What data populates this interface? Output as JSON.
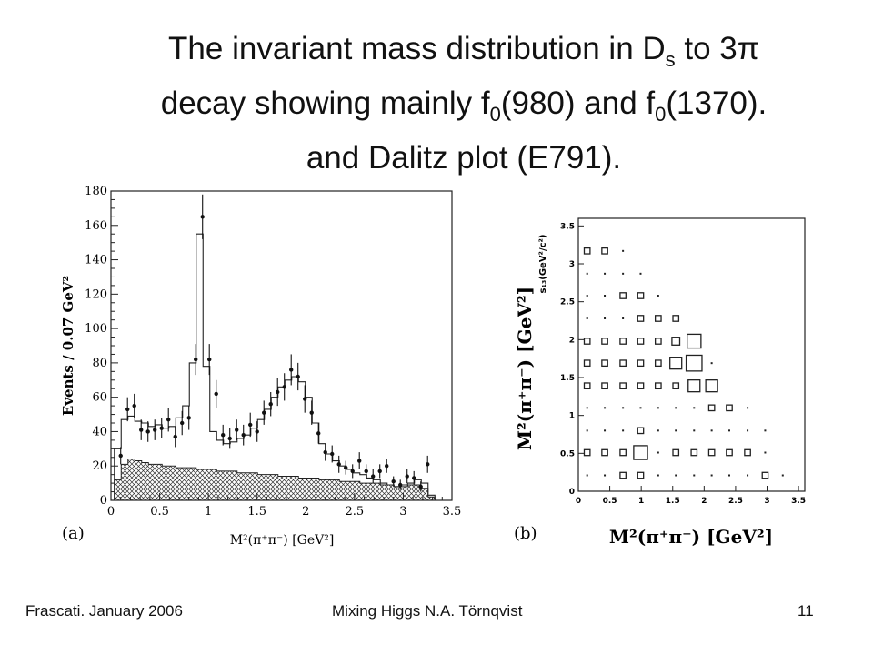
{
  "slide": {
    "title_line1_a": "The invariant mass distribution in D",
    "title_line1_sub": "s",
    "title_line1_b": " to 3π",
    "title_line2_a": "decay showing mainly  f",
    "title_line2_sub1": "0",
    "title_line2_b": "(980) and  f",
    "title_line2_sub2": "0",
    "title_line2_c": "(1370).",
    "title_line3": "and Dalitz plot (E791).",
    "footer_left": "Frascati.  January 2006",
    "footer_center": "Mixing Higgs       N.A. Törnqvist",
    "footer_right": "11"
  },
  "chart_data": [
    {
      "type": "histogram",
      "panel_label": "(a)",
      "xlabel": "M²(π⁺π⁻) [GeV²]",
      "ylabel": "Events / 0.07 GeV²",
      "xlim": [
        0,
        3.5
      ],
      "ylim": [
        0,
        180
      ],
      "x_ticks": [
        "0",
        "0.5",
        "1",
        "1.5",
        "2",
        "2.5",
        "3",
        "3.5"
      ],
      "y_ticks": [
        "0",
        "20",
        "40",
        "60",
        "80",
        "100",
        "120",
        "140",
        "160",
        "180"
      ],
      "series": [
        {
          "kind": "fit",
          "x": [
            0.07,
            0.14,
            0.21,
            0.28,
            0.35,
            0.42,
            0.49,
            0.56,
            0.63,
            0.7,
            0.77,
            0.84,
            0.91,
            0.98,
            1.05,
            1.12,
            1.19,
            1.26,
            1.33,
            1.4,
            1.47,
            1.54,
            1.61,
            1.68,
            1.75,
            1.82,
            1.89,
            1.96,
            2.03,
            2.1,
            2.17,
            2.24,
            2.31,
            2.38,
            2.45,
            2.52,
            2.59,
            2.66,
            2.73,
            2.8,
            2.87,
            2.94,
            3.01,
            3.08,
            3.15,
            3.22,
            3.29
          ],
          "values": [
            30,
            47,
            49,
            46,
            45,
            43,
            44,
            42,
            43,
            48,
            55,
            80,
            155,
            78,
            40,
            35,
            33,
            34,
            36,
            38,
            42,
            47,
            53,
            60,
            66,
            70,
            72,
            69,
            60,
            45,
            33,
            27,
            23,
            20,
            18,
            16,
            15,
            13,
            12,
            10,
            9,
            8,
            9,
            10,
            12,
            10,
            3
          ]
        },
        {
          "kind": "background",
          "x": [
            0.07,
            0.14,
            0.21,
            0.28,
            0.35,
            0.42,
            0.49,
            0.56,
            0.63,
            0.7,
            0.77,
            0.84,
            0.91,
            0.98,
            1.05,
            1.12,
            1.19,
            1.26,
            1.33,
            1.4,
            1.47,
            1.54,
            1.61,
            1.68,
            1.75,
            1.82,
            1.89,
            1.96,
            2.03,
            2.1,
            2.17,
            2.24,
            2.31,
            2.38,
            2.45,
            2.52,
            2.59,
            2.66,
            2.73,
            2.8,
            2.87,
            2.94,
            3.01,
            3.08,
            3.15,
            3.22,
            3.29
          ],
          "values": [
            12,
            21,
            24,
            23,
            22,
            21,
            21,
            20,
            20,
            19,
            19,
            19,
            18,
            18,
            18,
            17,
            17,
            17,
            16,
            16,
            16,
            15,
            15,
            15,
            14,
            14,
            14,
            13,
            13,
            13,
            12,
            12,
            12,
            11,
            11,
            11,
            10,
            10,
            10,
            9,
            9,
            8,
            8,
            9,
            9,
            7,
            2
          ]
        },
        {
          "kind": "data",
          "points": [
            {
              "x": 0.1,
              "y": 26,
              "err": 5
            },
            {
              "x": 0.17,
              "y": 53,
              "err": 7
            },
            {
              "x": 0.24,
              "y": 55,
              "err": 7
            },
            {
              "x": 0.31,
              "y": 41,
              "err": 6
            },
            {
              "x": 0.38,
              "y": 40,
              "err": 6
            },
            {
              "x": 0.45,
              "y": 41,
              "err": 6
            },
            {
              "x": 0.52,
              "y": 42,
              "err": 6
            },
            {
              "x": 0.59,
              "y": 47,
              "err": 7
            },
            {
              "x": 0.66,
              "y": 37,
              "err": 6
            },
            {
              "x": 0.73,
              "y": 45,
              "err": 7
            },
            {
              "x": 0.8,
              "y": 48,
              "err": 7
            },
            {
              "x": 0.87,
              "y": 82,
              "err": 9
            },
            {
              "x": 0.94,
              "y": 165,
              "err": 13
            },
            {
              "x": 1.01,
              "y": 82,
              "err": 9
            },
            {
              "x": 1.08,
              "y": 62,
              "err": 8
            },
            {
              "x": 1.15,
              "y": 38,
              "err": 6
            },
            {
              "x": 1.22,
              "y": 36,
              "err": 6
            },
            {
              "x": 1.29,
              "y": 41,
              "err": 6
            },
            {
              "x": 1.36,
              "y": 38,
              "err": 6
            },
            {
              "x": 1.43,
              "y": 44,
              "err": 7
            },
            {
              "x": 1.5,
              "y": 40,
              "err": 6
            },
            {
              "x": 1.57,
              "y": 51,
              "err": 7
            },
            {
              "x": 1.64,
              "y": 56,
              "err": 7
            },
            {
              "x": 1.71,
              "y": 63,
              "err": 8
            },
            {
              "x": 1.78,
              "y": 66,
              "err": 8
            },
            {
              "x": 1.85,
              "y": 76,
              "err": 9
            },
            {
              "x": 1.92,
              "y": 72,
              "err": 8
            },
            {
              "x": 1.99,
              "y": 59,
              "err": 8
            },
            {
              "x": 2.06,
              "y": 51,
              "err": 7
            },
            {
              "x": 2.13,
              "y": 39,
              "err": 6
            },
            {
              "x": 2.2,
              "y": 28,
              "err": 5
            },
            {
              "x": 2.27,
              "y": 27,
              "err": 5
            },
            {
              "x": 2.34,
              "y": 21,
              "err": 5
            },
            {
              "x": 2.41,
              "y": 19,
              "err": 4
            },
            {
              "x": 2.48,
              "y": 17,
              "err": 4
            },
            {
              "x": 2.55,
              "y": 23,
              "err": 5
            },
            {
              "x": 2.62,
              "y": 17,
              "err": 4
            },
            {
              "x": 2.69,
              "y": 14,
              "err": 4
            },
            {
              "x": 2.76,
              "y": 17,
              "err": 4
            },
            {
              "x": 2.83,
              "y": 20,
              "err": 4
            },
            {
              "x": 2.9,
              "y": 11,
              "err": 3
            },
            {
              "x": 2.97,
              "y": 9,
              "err": 3
            },
            {
              "x": 3.04,
              "y": 14,
              "err": 4
            },
            {
              "x": 3.11,
              "y": 13,
              "err": 4
            },
            {
              "x": 3.18,
              "y": 8,
              "err": 3
            },
            {
              "x": 3.25,
              "y": 21,
              "err": 5
            }
          ]
        }
      ]
    },
    {
      "type": "scatter",
      "panel_label": "(b)",
      "xlabel": "M²(π⁺π⁻) [GeV²]",
      "ylabel": "M²(π⁺π⁻) [GeV²]",
      "inner_ylabel": "s₁₃(GeV²/c²)",
      "xlim": [
        0,
        3.6
      ],
      "ylim": [
        0,
        3.6
      ],
      "x_ticks": [
        "0",
        "0.5",
        "1",
        "1.5",
        "2",
        "2.5",
        "3",
        "3.5"
      ],
      "y_ticks": [
        "0",
        "0.5",
        "1",
        "1.5",
        "2",
        "2.5",
        "3",
        "3.5"
      ],
      "cells": [
        {
          "x": 0.14,
          "y": 3.17,
          "w": 2
        },
        {
          "x": 0.42,
          "y": 3.17,
          "w": 2
        },
        {
          "x": 0.71,
          "y": 3.17,
          "w": 1
        },
        {
          "x": 0.14,
          "y": 2.87,
          "w": 1
        },
        {
          "x": 0.42,
          "y": 2.87,
          "w": 1
        },
        {
          "x": 0.71,
          "y": 2.87,
          "w": 1
        },
        {
          "x": 0.99,
          "y": 2.87,
          "w": 1
        },
        {
          "x": 0.14,
          "y": 2.58,
          "w": 1
        },
        {
          "x": 0.42,
          "y": 2.58,
          "w": 1
        },
        {
          "x": 0.71,
          "y": 2.58,
          "w": 2
        },
        {
          "x": 0.99,
          "y": 2.58,
          "w": 2
        },
        {
          "x": 1.27,
          "y": 2.58,
          "w": 1
        },
        {
          "x": 0.14,
          "y": 2.28,
          "w": 1
        },
        {
          "x": 0.42,
          "y": 2.28,
          "w": 1
        },
        {
          "x": 0.71,
          "y": 2.28,
          "w": 1
        },
        {
          "x": 0.99,
          "y": 2.28,
          "w": 2
        },
        {
          "x": 1.27,
          "y": 2.28,
          "w": 2
        },
        {
          "x": 1.55,
          "y": 2.28,
          "w": 2
        },
        {
          "x": 0.14,
          "y": 1.98,
          "w": 2
        },
        {
          "x": 0.42,
          "y": 1.98,
          "w": 2
        },
        {
          "x": 0.71,
          "y": 1.98,
          "w": 2
        },
        {
          "x": 0.99,
          "y": 1.98,
          "w": 2
        },
        {
          "x": 1.27,
          "y": 1.98,
          "w": 2
        },
        {
          "x": 1.55,
          "y": 1.98,
          "w": 3
        },
        {
          "x": 1.84,
          "y": 1.98,
          "w": 6
        },
        {
          "x": 0.14,
          "y": 1.69,
          "w": 2
        },
        {
          "x": 0.42,
          "y": 1.69,
          "w": 2
        },
        {
          "x": 0.71,
          "y": 1.69,
          "w": 2
        },
        {
          "x": 0.99,
          "y": 1.69,
          "w": 2
        },
        {
          "x": 1.27,
          "y": 1.69,
          "w": 2
        },
        {
          "x": 1.55,
          "y": 1.69,
          "w": 5
        },
        {
          "x": 1.84,
          "y": 1.69,
          "w": 7
        },
        {
          "x": 2.12,
          "y": 1.69,
          "w": 1
        },
        {
          "x": 0.14,
          "y": 1.39,
          "w": 2
        },
        {
          "x": 0.42,
          "y": 1.39,
          "w": 2
        },
        {
          "x": 0.71,
          "y": 1.39,
          "w": 2
        },
        {
          "x": 0.99,
          "y": 1.39,
          "w": 2
        },
        {
          "x": 1.27,
          "y": 1.39,
          "w": 2
        },
        {
          "x": 1.55,
          "y": 1.39,
          "w": 2
        },
        {
          "x": 1.84,
          "y": 1.39,
          "w": 5
        },
        {
          "x": 2.12,
          "y": 1.39,
          "w": 5
        },
        {
          "x": 0.14,
          "y": 1.1,
          "w": 1
        },
        {
          "x": 0.42,
          "y": 1.1,
          "w": 1
        },
        {
          "x": 0.71,
          "y": 1.1,
          "w": 1
        },
        {
          "x": 0.99,
          "y": 1.1,
          "w": 1
        },
        {
          "x": 1.27,
          "y": 1.1,
          "w": 1
        },
        {
          "x": 1.55,
          "y": 1.1,
          "w": 1
        },
        {
          "x": 1.84,
          "y": 1.1,
          "w": 1
        },
        {
          "x": 2.12,
          "y": 1.1,
          "w": 2
        },
        {
          "x": 2.4,
          "y": 1.1,
          "w": 2
        },
        {
          "x": 2.69,
          "y": 1.1,
          "w": 1
        },
        {
          "x": 0.14,
          "y": 0.8,
          "w": 1
        },
        {
          "x": 0.42,
          "y": 0.8,
          "w": 1
        },
        {
          "x": 0.71,
          "y": 0.8,
          "w": 1
        },
        {
          "x": 0.99,
          "y": 0.8,
          "w": 2
        },
        {
          "x": 1.27,
          "y": 0.8,
          "w": 1
        },
        {
          "x": 1.55,
          "y": 0.8,
          "w": 1
        },
        {
          "x": 1.84,
          "y": 0.8,
          "w": 1
        },
        {
          "x": 2.12,
          "y": 0.8,
          "w": 1
        },
        {
          "x": 2.4,
          "y": 0.8,
          "w": 1
        },
        {
          "x": 2.69,
          "y": 0.8,
          "w": 1
        },
        {
          "x": 2.97,
          "y": 0.8,
          "w": 1
        },
        {
          "x": 0.14,
          "y": 0.51,
          "w": 2
        },
        {
          "x": 0.42,
          "y": 0.51,
          "w": 2
        },
        {
          "x": 0.71,
          "y": 0.51,
          "w": 2
        },
        {
          "x": 0.99,
          "y": 0.51,
          "w": 6
        },
        {
          "x": 1.27,
          "y": 0.51,
          "w": 1
        },
        {
          "x": 1.55,
          "y": 0.51,
          "w": 2
        },
        {
          "x": 1.84,
          "y": 0.51,
          "w": 2
        },
        {
          "x": 2.12,
          "y": 0.51,
          "w": 2
        },
        {
          "x": 2.4,
          "y": 0.51,
          "w": 2
        },
        {
          "x": 2.69,
          "y": 0.51,
          "w": 2
        },
        {
          "x": 2.97,
          "y": 0.51,
          "w": 1
        },
        {
          "x": 0.14,
          "y": 0.21,
          "w": 1
        },
        {
          "x": 0.42,
          "y": 0.21,
          "w": 1
        },
        {
          "x": 0.71,
          "y": 0.21,
          "w": 2
        },
        {
          "x": 0.99,
          "y": 0.21,
          "w": 2
        },
        {
          "x": 1.27,
          "y": 0.21,
          "w": 1
        },
        {
          "x": 1.55,
          "y": 0.21,
          "w": 1
        },
        {
          "x": 1.84,
          "y": 0.21,
          "w": 1
        },
        {
          "x": 2.12,
          "y": 0.21,
          "w": 1
        },
        {
          "x": 2.4,
          "y": 0.21,
          "w": 1
        },
        {
          "x": 2.69,
          "y": 0.21,
          "w": 1
        },
        {
          "x": 2.97,
          "y": 0.21,
          "w": 2
        },
        {
          "x": 3.25,
          "y": 0.21,
          "w": 1
        }
      ]
    }
  ]
}
